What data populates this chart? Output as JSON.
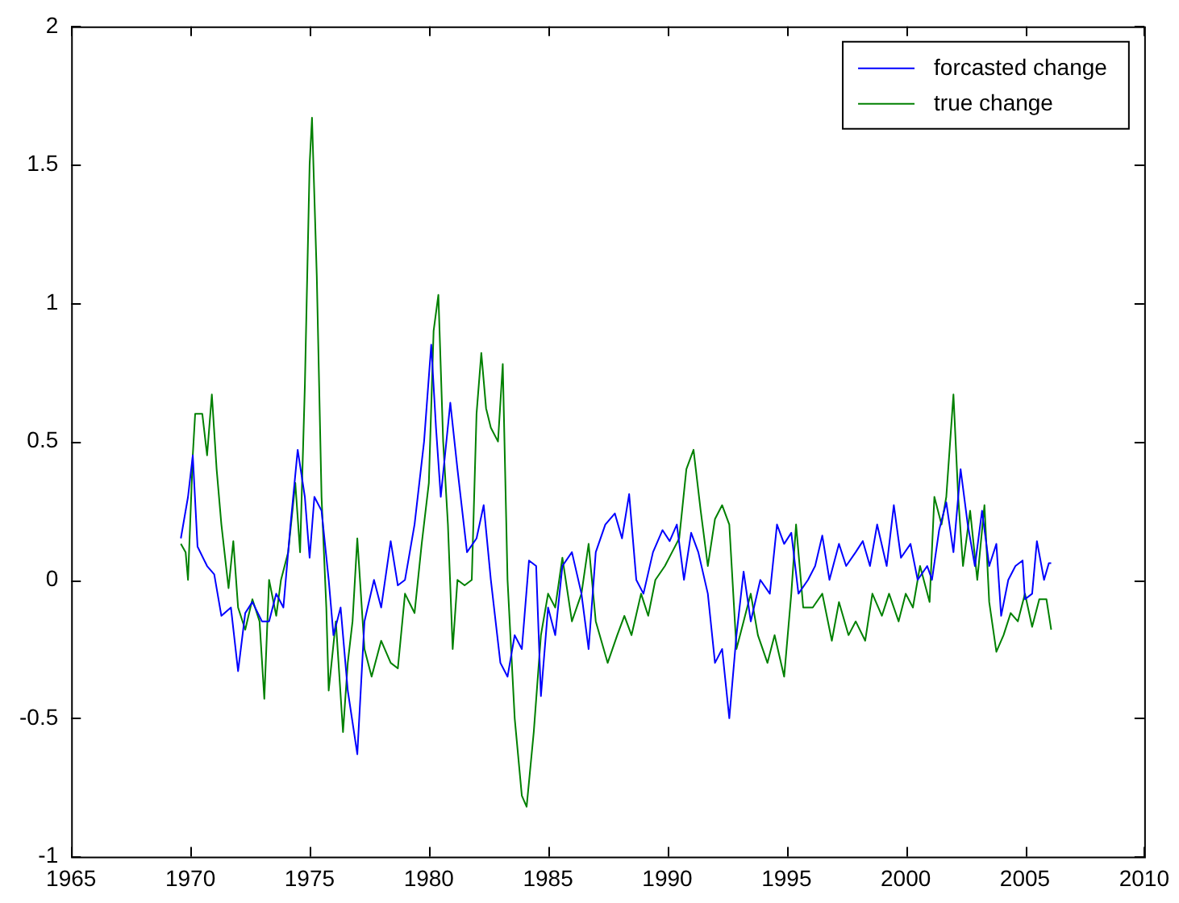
{
  "chart_data": {
    "type": "line",
    "xlim": [
      1965,
      2010
    ],
    "xticks": [
      1965,
      1970,
      1975,
      1980,
      1985,
      1990,
      1995,
      2000,
      2005,
      2010
    ],
    "ylim": [
      -1,
      2
    ],
    "yticks": [
      -1,
      -0.5,
      0,
      0.5,
      1,
      1.5,
      2
    ],
    "grid": false,
    "legend": "top right",
    "marker": "none",
    "line_style": "solid",
    "series": [
      {
        "name": "forcasted change",
        "color": "#0000ff",
        "x": [
          1969.6,
          1969.9,
          1970.1,
          1970.3,
          1970.7,
          1971.0,
          1971.3,
          1971.7,
          1972.0,
          1972.3,
          1972.6,
          1973.0,
          1973.3,
          1973.6,
          1973.9,
          1974.2,
          1974.5,
          1974.8,
          1975.0,
          1975.2,
          1975.5,
          1975.8,
          1976.0,
          1976.3,
          1976.6,
          1977.0,
          1977.3,
          1977.7,
          1978.0,
          1978.4,
          1978.7,
          1979.0,
          1979.4,
          1979.8,
          1980.1,
          1980.3,
          1980.5,
          1980.9,
          1981.2,
          1981.6,
          1982.0,
          1982.3,
          1982.6,
          1983.0,
          1983.3,
          1983.6,
          1983.9,
          1984.2,
          1984.5,
          1984.7,
          1985.0,
          1985.3,
          1985.6,
          1986.0,
          1986.4,
          1986.7,
          1987.0,
          1987.4,
          1987.8,
          1988.1,
          1988.4,
          1988.7,
          1989.0,
          1989.4,
          1989.8,
          1990.1,
          1990.4,
          1990.7,
          1991.0,
          1991.3,
          1991.7,
          1992.0,
          1992.3,
          1992.6,
          1992.9,
          1993.2,
          1993.5,
          1993.9,
          1994.3,
          1994.6,
          1994.9,
          1995.2,
          1995.5,
          1995.9,
          1996.2,
          1996.5,
          1996.8,
          1997.2,
          1997.5,
          1997.9,
          1998.2,
          1998.5,
          1998.8,
          1999.2,
          1999.5,
          1999.8,
          2000.2,
          2000.5,
          2000.9,
          2001.1,
          2001.4,
          2001.7,
          2002.0,
          2002.3,
          2002.6,
          2002.9,
          2003.2,
          2003.5,
          2003.8,
          2004.0,
          2004.3,
          2004.6,
          2004.9,
          2005.0,
          2005.3,
          2005.5,
          2005.8,
          2006.0,
          2006.1
        ],
        "values": [
          0.15,
          0.3,
          0.45,
          0.12,
          0.05,
          0.02,
          -0.13,
          -0.1,
          -0.33,
          -0.12,
          -0.08,
          -0.15,
          -0.15,
          -0.05,
          -0.1,
          0.2,
          0.47,
          0.3,
          0.08,
          0.3,
          0.25,
          0.0,
          -0.2,
          -0.1,
          -0.4,
          -0.63,
          -0.15,
          0.0,
          -0.1,
          0.14,
          -0.02,
          0.0,
          0.2,
          0.5,
          0.85,
          0.55,
          0.3,
          0.64,
          0.4,
          0.1,
          0.15,
          0.27,
          0.0,
          -0.3,
          -0.35,
          -0.2,
          -0.25,
          0.07,
          0.05,
          -0.42,
          -0.1,
          -0.2,
          0.05,
          0.1,
          -0.05,
          -0.25,
          0.1,
          0.2,
          0.24,
          0.15,
          0.31,
          0.0,
          -0.05,
          0.1,
          0.18,
          0.14,
          0.2,
          0.0,
          0.17,
          0.1,
          -0.05,
          -0.3,
          -0.25,
          -0.5,
          -0.2,
          0.03,
          -0.15,
          0.0,
          -0.05,
          0.2,
          0.13,
          0.17,
          -0.05,
          0.0,
          0.05,
          0.16,
          0.0,
          0.13,
          0.05,
          0.1,
          0.14,
          0.05,
          0.2,
          0.05,
          0.27,
          0.08,
          0.13,
          0.0,
          0.05,
          0.0,
          0.18,
          0.28,
          0.1,
          0.4,
          0.2,
          0.05,
          0.25,
          0.05,
          0.13,
          -0.13,
          0.0,
          0.05,
          0.07,
          -0.07,
          -0.05,
          0.14,
          0.0,
          0.06,
          0.06
        ]
      },
      {
        "name": "true change",
        "color": "#008000",
        "x": [
          1969.6,
          1969.8,
          1969.9,
          1970.1,
          1970.2,
          1970.5,
          1970.7,
          1970.9,
          1971.1,
          1971.3,
          1971.6,
          1971.8,
          1972.0,
          1972.3,
          1972.6,
          1972.9,
          1973.1,
          1973.3,
          1973.6,
          1973.8,
          1974.1,
          1974.4,
          1974.6,
          1974.8,
          1975.0,
          1975.1,
          1975.3,
          1975.5,
          1975.7,
          1975.8,
          1976.1,
          1976.4,
          1976.6,
          1976.8,
          1977.0,
          1977.3,
          1977.6,
          1978.0,
          1978.4,
          1978.7,
          1979.0,
          1979.4,
          1979.7,
          1980.0,
          1980.2,
          1980.4,
          1980.6,
          1980.8,
          1981.0,
          1981.2,
          1981.5,
          1981.8,
          1982.0,
          1982.2,
          1982.4,
          1982.6,
          1982.9,
          1983.1,
          1983.3,
          1983.6,
          1983.9,
          1984.1,
          1984.4,
          1984.7,
          1985.0,
          1985.3,
          1985.6,
          1986.0,
          1986.4,
          1986.7,
          1987.0,
          1987.5,
          1987.9,
          1988.2,
          1988.5,
          1988.9,
          1989.2,
          1989.5,
          1989.9,
          1990.2,
          1990.5,
          1990.8,
          1991.1,
          1991.4,
          1991.7,
          1992.0,
          1992.3,
          1992.6,
          1992.9,
          1993.2,
          1993.5,
          1993.8,
          1994.2,
          1994.5,
          1994.9,
          1995.2,
          1995.4,
          1995.7,
          1996.1,
          1996.5,
          1996.9,
          1997.2,
          1997.6,
          1997.9,
          1998.3,
          1998.6,
          1999.0,
          1999.3,
          1999.7,
          2000.0,
          2000.3,
          2000.6,
          2001.0,
          2001.2,
          2001.5,
          2001.7,
          2002.0,
          2002.2,
          2002.4,
          2002.7,
          2003.0,
          2003.3,
          2003.5,
          2003.8,
          2004.1,
          2004.4,
          2004.7,
          2005.0,
          2005.3,
          2005.6,
          2005.9,
          2006.1
        ],
        "values": [
          0.13,
          0.1,
          0.0,
          0.45,
          0.6,
          0.6,
          0.45,
          0.67,
          0.4,
          0.2,
          -0.03,
          0.14,
          -0.1,
          -0.18,
          -0.07,
          -0.15,
          -0.43,
          0.0,
          -0.13,
          0.0,
          0.1,
          0.35,
          0.1,
          0.7,
          1.5,
          1.67,
          1.1,
          0.3,
          -0.1,
          -0.4,
          -0.15,
          -0.55,
          -0.3,
          -0.15,
          0.15,
          -0.25,
          -0.35,
          -0.22,
          -0.3,
          -0.32,
          -0.05,
          -0.12,
          0.13,
          0.35,
          0.9,
          1.03,
          0.5,
          0.2,
          -0.25,
          0.0,
          -0.02,
          0.0,
          0.6,
          0.82,
          0.62,
          0.55,
          0.5,
          0.78,
          0.0,
          -0.5,
          -0.78,
          -0.82,
          -0.55,
          -0.2,
          -0.05,
          -0.1,
          0.08,
          -0.15,
          -0.05,
          0.13,
          -0.15,
          -0.3,
          -0.2,
          -0.13,
          -0.2,
          -0.05,
          -0.13,
          0.0,
          0.05,
          0.1,
          0.15,
          0.4,
          0.47,
          0.25,
          0.05,
          0.22,
          0.27,
          0.2,
          -0.25,
          -0.15,
          -0.05,
          -0.2,
          -0.3,
          -0.2,
          -0.35,
          -0.05,
          0.2,
          -0.1,
          -0.1,
          -0.05,
          -0.22,
          -0.08,
          -0.2,
          -0.15,
          -0.22,
          -0.05,
          -0.13,
          -0.05,
          -0.15,
          -0.05,
          -0.1,
          0.05,
          -0.08,
          0.3,
          0.2,
          0.3,
          0.67,
          0.3,
          0.05,
          0.25,
          0.0,
          0.27,
          -0.08,
          -0.26,
          -0.2,
          -0.12,
          -0.15,
          -0.05,
          -0.17,
          -0.07,
          -0.07,
          -0.18
        ]
      }
    ]
  }
}
